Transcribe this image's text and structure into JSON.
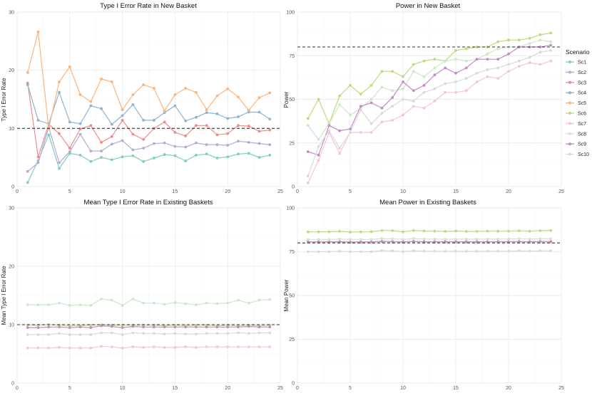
{
  "figure": {
    "legend_title": "Scenario",
    "legend_entries": [
      {
        "name": "Sc1",
        "color": "#7fcdbb"
      },
      {
        "name": "Sc2",
        "color": "#b3a9d4"
      },
      {
        "name": "Sc3",
        "color": "#ef8a8a"
      },
      {
        "name": "Sc4",
        "color": "#8bb3d4"
      },
      {
        "name": "Sc5",
        "color": "#fdb47a"
      },
      {
        "name": "Sc6",
        "color": "#b8dd7c"
      },
      {
        "name": "Sc7",
        "color": "#f6c4d8"
      },
      {
        "name": "Sc8",
        "color": "#c9e9c7"
      },
      {
        "name": "Sc9",
        "color": "#c48ac7"
      },
      {
        "name": "Sc10",
        "color": "#d9d9d9"
      }
    ]
  },
  "chart_data": [
    {
      "type": "line",
      "title": "Type I Error Rate in New Basket",
      "xlabel": "",
      "ylabel": "Type I Error Rate",
      "xlim": [
        0,
        25
      ],
      "ylim": [
        0,
        30
      ],
      "xticks": [
        0,
        5,
        10,
        15,
        20,
        25
      ],
      "yticks": [
        0,
        10,
        20,
        30
      ],
      "reference_line": 10,
      "grid": true,
      "x": [
        1,
        2,
        3,
        4,
        5,
        6,
        7,
        8,
        9,
        10,
        11,
        12,
        13,
        14,
        15,
        16,
        17,
        18,
        19,
        20,
        21,
        22,
        23,
        24
      ],
      "series": [
        {
          "name": "Sc1",
          "color": "#7fcdbb",
          "values": [
            0.7,
            4.5,
            8.9,
            3.1,
            5.7,
            5.4,
            4.3,
            5.0,
            4.6,
            5.1,
            5.3,
            4.3,
            4.9,
            5.5,
            5.3,
            4.4,
            5.4,
            5.6,
            4.9,
            5.1,
            5.6,
            5.7,
            5.0,
            5.4
          ]
        },
        {
          "name": "Sc2",
          "color": "#b3a9d4",
          "values": [
            2.6,
            4.1,
            10.2,
            4.1,
            6.0,
            9.0,
            6.1,
            6.1,
            7.3,
            7.9,
            6.3,
            6.6,
            7.4,
            7.5,
            6.9,
            6.8,
            7.5,
            7.2,
            7.2,
            7.1,
            7.8,
            7.6,
            7.4,
            7.2
          ]
        },
        {
          "name": "Sc3",
          "color": "#ef8a8a",
          "values": [
            17.8,
            5.1,
            10.7,
            9.1,
            6.6,
            9.9,
            10.5,
            7.6,
            8.6,
            11.4,
            9.0,
            8.1,
            10.0,
            11.1,
            9.3,
            8.7,
            10.5,
            10.5,
            8.9,
            9.1,
            10.5,
            10.4,
            9.5,
            9.7
          ]
        },
        {
          "name": "Sc4",
          "color": "#8bb3d4",
          "values": [
            17.5,
            11.4,
            10.8,
            16.2,
            11.1,
            10.8,
            13.9,
            13.4,
            10.7,
            12.2,
            14.1,
            11.4,
            11.4,
            12.7,
            13.9,
            11.3,
            11.9,
            12.7,
            12.5,
            11.7,
            12.0,
            12.8,
            12.8,
            11.6
          ]
        },
        {
          "name": "Sc5",
          "color": "#fdb47a",
          "values": [
            19.6,
            26.6,
            10.0,
            18.0,
            20.6,
            15.8,
            14.6,
            18.5,
            18.0,
            13.2,
            15.8,
            17.5,
            16.9,
            13.0,
            15.8,
            16.9,
            16.2,
            13.2,
            15.6,
            16.8,
            15.4,
            13.1,
            15.3,
            16.1
          ]
        }
      ]
    },
    {
      "type": "line",
      "title": "Power in New Basket",
      "xlabel": "",
      "ylabel": "Power",
      "xlim": [
        0,
        25
      ],
      "ylim": [
        0,
        100
      ],
      "xticks": [
        0,
        5,
        10,
        15,
        20,
        25
      ],
      "yticks": [
        0,
        25,
        50,
        75,
        100
      ],
      "reference_line": 80,
      "grid": true,
      "x": [
        1,
        2,
        3,
        4,
        5,
        6,
        7,
        8,
        9,
        10,
        11,
        12,
        13,
        14,
        15,
        16,
        17,
        18,
        19,
        20,
        21,
        22,
        23,
        24
      ],
      "series": [
        {
          "name": "Sc6",
          "color": "#b8dd7c",
          "values": [
            39,
            50,
            36,
            52,
            58,
            53,
            58,
            66,
            66,
            63,
            70,
            72,
            73,
            72,
            78,
            79,
            80,
            80,
            83,
            84,
            84,
            85,
            87,
            88
          ]
        },
        {
          "name": "Sc7",
          "color": "#f6c4d8",
          "values": [
            2,
            15,
            31,
            19,
            31,
            31,
            31,
            37,
            38,
            41,
            46,
            45,
            49,
            54,
            54,
            55,
            60,
            63,
            62,
            66,
            69,
            71,
            70,
            72
          ]
        },
        {
          "name": "Sc8",
          "color": "#c9e9c7",
          "values": [
            35,
            27,
            36,
            47,
            41,
            45,
            50,
            57,
            55,
            56,
            66,
            63,
            68,
            72,
            73,
            72,
            73,
            76,
            79,
            80,
            80,
            82,
            84,
            83
          ]
        },
        {
          "name": "Sc9",
          "color": "#c48ac7",
          "values": [
            20,
            18,
            35,
            32,
            33,
            46,
            48,
            45,
            51,
            60,
            55,
            58,
            64,
            68,
            65,
            68,
            73,
            73,
            73,
            76,
            80,
            80,
            80,
            81
          ]
        },
        {
          "name": "Sc10",
          "color": "#d9d9d9",
          "values": [
            6,
            23,
            32,
            22,
            31,
            44,
            36,
            42,
            46,
            50,
            49,
            54,
            56,
            59,
            60,
            62,
            65,
            67,
            68,
            70,
            72,
            74,
            77,
            78
          ]
        }
      ]
    },
    {
      "type": "line",
      "title": "Mean Type I Error Rate in Existing Baskets",
      "xlabel": "",
      "ylabel": "Mean Type I Error Rate",
      "xlim": [
        0,
        25
      ],
      "ylim": [
        0,
        30
      ],
      "xticks": [
        0,
        5,
        10,
        15,
        20,
        25
      ],
      "yticks": [
        0,
        10,
        20,
        30
      ],
      "reference_line": 10,
      "grid": true,
      "x": [
        1,
        2,
        3,
        4,
        5,
        6,
        7,
        8,
        9,
        10,
        11,
        12,
        13,
        14,
        15,
        16,
        17,
        18,
        19,
        20,
        21,
        22,
        23,
        24
      ],
      "series": [
        {
          "name": "Sc6",
          "color": "#b8dd7c",
          "values": [
            9.9,
            9.9,
            10.0,
            9.9,
            9.8,
            9.8,
            9.9,
            10.0,
            9.9,
            9.9,
            9.9,
            9.9,
            9.9,
            9.8,
            9.9,
            9.8,
            9.9,
            9.9,
            9.8,
            9.9,
            9.8,
            9.9,
            9.8,
            9.9
          ]
        },
        {
          "name": "Sc7",
          "color": "#f6c4d8",
          "values": [
            6.0,
            6.0,
            6.0,
            6.1,
            6.0,
            6.0,
            6.0,
            6.3,
            6.2,
            6.0,
            6.2,
            6.1,
            6.2,
            6.1,
            6.1,
            6.2,
            6.1,
            6.2,
            6.2,
            6.2,
            6.2,
            6.2,
            6.2,
            6.2
          ]
        },
        {
          "name": "Sc8",
          "color": "#c9e9c7",
          "values": [
            13.4,
            13.4,
            13.4,
            13.7,
            13.3,
            13.4,
            13.3,
            14.4,
            14.2,
            13.3,
            14.4,
            13.7,
            13.7,
            13.5,
            13.8,
            13.6,
            13.4,
            13.7,
            13.6,
            13.7,
            14.2,
            13.7,
            14.2,
            14.3
          ]
        },
        {
          "name": "Sc9",
          "color": "#c48ac7",
          "values": [
            9.5,
            9.5,
            9.6,
            9.6,
            9.5,
            9.6,
            9.5,
            9.8,
            9.7,
            9.5,
            9.7,
            9.6,
            9.6,
            9.6,
            9.6,
            9.6,
            9.6,
            9.6,
            9.6,
            9.6,
            9.6,
            9.7,
            9.6,
            9.6
          ]
        },
        {
          "name": "Sc10",
          "color": "#d9d9d9",
          "values": [
            8.3,
            8.3,
            8.3,
            8.5,
            8.3,
            8.3,
            8.3,
            8.6,
            8.6,
            8.3,
            8.6,
            8.5,
            8.5,
            8.4,
            8.5,
            8.4,
            8.4,
            8.5,
            8.5,
            8.5,
            8.6,
            8.5,
            8.6,
            8.6
          ]
        }
      ]
    },
    {
      "type": "line",
      "title": "Mean Power in Existing Baskets",
      "xlabel": "",
      "ylabel": "Mean Power",
      "xlim": [
        0,
        25
      ],
      "ylim": [
        0,
        100
      ],
      "xticks": [
        0,
        5,
        10,
        15,
        20,
        25
      ],
      "yticks": [
        0,
        25,
        50,
        75,
        100
      ],
      "reference_line": 80,
      "grid": true,
      "x": [
        1,
        2,
        3,
        4,
        5,
        6,
        7,
        8,
        9,
        10,
        11,
        12,
        13,
        14,
        15,
        16,
        17,
        18,
        19,
        20,
        21,
        22,
        23,
        24
      ],
      "series": [
        {
          "name": "Sc6",
          "color": "#b8dd7c",
          "values": [
            86.3,
            86.3,
            86.4,
            86.6,
            86.2,
            86.3,
            86.4,
            87.1,
            87.0,
            86.3,
            87.1,
            86.8,
            86.7,
            86.6,
            86.8,
            86.6,
            86.6,
            86.7,
            86.7,
            86.7,
            86.9,
            86.7,
            87.0,
            87.1
          ]
        },
        {
          "name": "Sc7",
          "color": "#f6c4d8",
          "values": [
            80.3,
            80.3,
            80.3,
            80.4,
            80.3,
            80.3,
            80.3,
            80.6,
            80.5,
            80.3,
            80.6,
            80.4,
            80.4,
            80.4,
            80.4,
            80.4,
            80.4,
            80.4,
            80.4,
            80.4,
            80.5,
            80.4,
            80.5,
            80.5
          ]
        },
        {
          "name": "Sc8",
          "color": "#c9e9c7",
          "values": [
            82.0,
            82.0,
            82.0,
            82.2,
            82.0,
            82.0,
            82.0,
            82.5,
            82.4,
            82.0,
            82.5,
            82.2,
            82.2,
            82.1,
            82.2,
            82.1,
            82.1,
            82.2,
            82.2,
            82.2,
            82.4,
            82.2,
            82.4,
            82.4
          ]
        },
        {
          "name": "Sc9",
          "color": "#c48ac7",
          "values": [
            80.6,
            80.6,
            80.6,
            80.7,
            80.5,
            80.6,
            80.6,
            80.9,
            80.8,
            80.6,
            80.9,
            80.7,
            80.7,
            80.7,
            80.7,
            80.7,
            80.7,
            80.7,
            80.7,
            80.7,
            80.8,
            80.7,
            80.8,
            80.8
          ]
        },
        {
          "name": "Sc10",
          "color": "#d9d9d9",
          "values": [
            75.0,
            75.0,
            75.0,
            75.2,
            75.0,
            75.0,
            75.0,
            75.6,
            75.5,
            75.0,
            75.6,
            75.3,
            75.3,
            75.2,
            75.3,
            75.2,
            75.2,
            75.3,
            75.3,
            75.3,
            75.5,
            75.3,
            75.5,
            75.5
          ]
        }
      ]
    }
  ]
}
